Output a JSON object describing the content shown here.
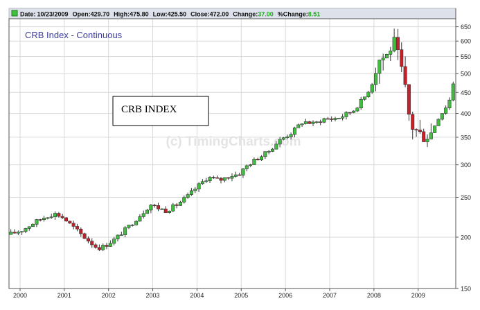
{
  "header": {
    "date_label": "Date:",
    "date_value": "10/23/2009",
    "open_label": "Open:",
    "open_value": "429.70",
    "high_label": "High:",
    "high_value": "475.80",
    "low_label": "Low:",
    "low_value": "425.50",
    "close_label": "Close:",
    "close_value": "472.00",
    "change_label": "Change:",
    "change_value": "37.00",
    "pct_change_label": "%Change:",
    "pct_change_value": "8.51"
  },
  "colors": {
    "up": "#3ec03e",
    "down": "#c8202a",
    "title": "#3b3b9e",
    "change": "#22aa22",
    "grid": "#d8d8d8",
    "frame": "#555555",
    "bar_bg": "#dde2ea"
  },
  "chart_data": {
    "type": "candlestick",
    "title": "CRB Index - Continuous",
    "annotation": "CRB INDEX",
    "watermark": "(c) TimingCharts.com",
    "y_scale": "log",
    "ylim": [
      150,
      680
    ],
    "y_ticks": [
      150,
      200,
      250,
      300,
      350,
      400,
      450,
      500,
      550,
      600,
      650
    ],
    "x_range": [
      1999.75,
      2009.85
    ],
    "x_ticks": [
      {
        "label": "2000",
        "value": 2000.0
      },
      {
        "label": "2001",
        "value": 2001.0
      },
      {
        "label": "2002",
        "value": 2002.0
      },
      {
        "label": "2003",
        "value": 2003.0
      },
      {
        "label": "2004",
        "value": 2004.0
      },
      {
        "label": "2005",
        "value": 2005.0
      },
      {
        "label": "2006",
        "value": 2006.0
      },
      {
        "label": "2007",
        "value": 2007.0
      },
      {
        "label": "2008",
        "value": 2008.0
      },
      {
        "label": "2009",
        "value": 2009.0
      }
    ],
    "grid": true,
    "anchors": [
      [
        1999.75,
        203
      ],
      [
        2000.05,
        208
      ],
      [
        2000.35,
        218
      ],
      [
        2000.6,
        225
      ],
      [
        2000.8,
        228
      ],
      [
        2000.95,
        224
      ],
      [
        2001.15,
        214
      ],
      [
        2001.45,
        200
      ],
      [
        2001.75,
        188
      ],
      [
        2001.9,
        190
      ],
      [
        2002.15,
        198
      ],
      [
        2002.45,
        212
      ],
      [
        2002.75,
        228
      ],
      [
        2002.95,
        240
      ],
      [
        2003.1,
        236
      ],
      [
        2003.3,
        232
      ],
      [
        2003.55,
        240
      ],
      [
        2003.8,
        252
      ],
      [
        2004.05,
        268
      ],
      [
        2004.25,
        280
      ],
      [
        2004.5,
        275
      ],
      [
        2004.75,
        282
      ],
      [
        2004.95,
        285
      ],
      [
        2005.15,
        300
      ],
      [
        2005.35,
        310
      ],
      [
        2005.6,
        322
      ],
      [
        2005.85,
        343
      ],
      [
        2006.15,
        360
      ],
      [
        2006.4,
        383
      ],
      [
        2006.65,
        377
      ],
      [
        2006.85,
        388
      ],
      [
        2007.05,
        388
      ],
      [
        2007.25,
        392
      ],
      [
        2007.55,
        408
      ],
      [
        2007.8,
        440
      ],
      [
        2007.95,
        470
      ],
      [
        2008.1,
        540
      ],
      [
        2008.3,
        555
      ],
      [
        2008.45,
        600
      ],
      [
        2008.55,
        550
      ],
      [
        2008.68,
        480
      ],
      [
        2008.82,
        375
      ],
      [
        2009.0,
        360
      ],
      [
        2009.15,
        350
      ],
      [
        2009.3,
        360
      ],
      [
        2009.45,
        390
      ],
      [
        2009.6,
        410
      ],
      [
        2009.75,
        440
      ],
      [
        2009.82,
        472
      ]
    ]
  }
}
